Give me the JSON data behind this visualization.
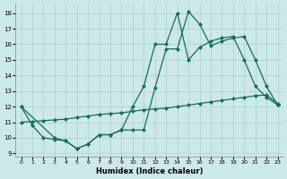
{
  "xlabel": "Humidex (Indice chaleur)",
  "bg_color": "#cce8e8",
  "grid_color": "#aad0d0",
  "line_color": "#1a6b5a",
  "xlim": [
    -0.5,
    23.5
  ],
  "ylim": [
    8.8,
    18.6
  ],
  "xticks": [
    0,
    1,
    2,
    3,
    4,
    5,
    6,
    7,
    8,
    9,
    10,
    11,
    12,
    13,
    14,
    15,
    16,
    17,
    18,
    19,
    20,
    21,
    22,
    23
  ],
  "yticks": [
    9,
    10,
    11,
    12,
    13,
    14,
    15,
    16,
    17,
    18
  ],
  "line1_x": [
    0,
    1,
    2,
    3,
    4,
    5,
    6,
    7,
    8,
    9,
    10,
    11,
    12,
    13,
    14,
    15,
    16,
    17,
    18,
    19,
    20,
    21,
    22,
    23
  ],
  "line1_y": [
    12.0,
    10.8,
    10.0,
    9.9,
    9.8,
    9.3,
    9.6,
    10.2,
    10.2,
    10.5,
    10.5,
    10.5,
    13.2,
    15.7,
    15.7,
    18.1,
    17.3,
    15.9,
    16.2,
    16.4,
    16.5,
    15.0,
    13.3,
    12.1
  ],
  "line2_x": [
    0,
    3,
    4,
    5,
    6,
    7,
    8,
    9,
    10,
    11,
    12,
    13,
    14,
    15,
    16,
    17,
    18,
    19,
    20,
    21,
    22,
    23
  ],
  "line2_y": [
    12.0,
    10.0,
    9.8,
    9.3,
    9.6,
    10.2,
    10.2,
    10.5,
    12.0,
    13.3,
    16.0,
    16.0,
    18.0,
    15.0,
    15.8,
    16.2,
    16.4,
    16.5,
    15.0,
    13.3,
    12.6,
    12.1
  ],
  "line3_x": [
    0,
    1,
    2,
    3,
    4,
    5,
    6,
    7,
    8,
    9,
    10,
    11,
    12,
    13,
    14,
    15,
    16,
    17,
    18,
    19,
    20,
    21,
    22,
    23
  ],
  "line3_y": [
    11.0,
    11.05,
    11.1,
    11.15,
    11.2,
    11.3,
    11.4,
    11.5,
    11.55,
    11.6,
    11.7,
    11.8,
    11.85,
    11.9,
    12.0,
    12.1,
    12.2,
    12.3,
    12.4,
    12.5,
    12.6,
    12.7,
    12.75,
    12.2
  ]
}
